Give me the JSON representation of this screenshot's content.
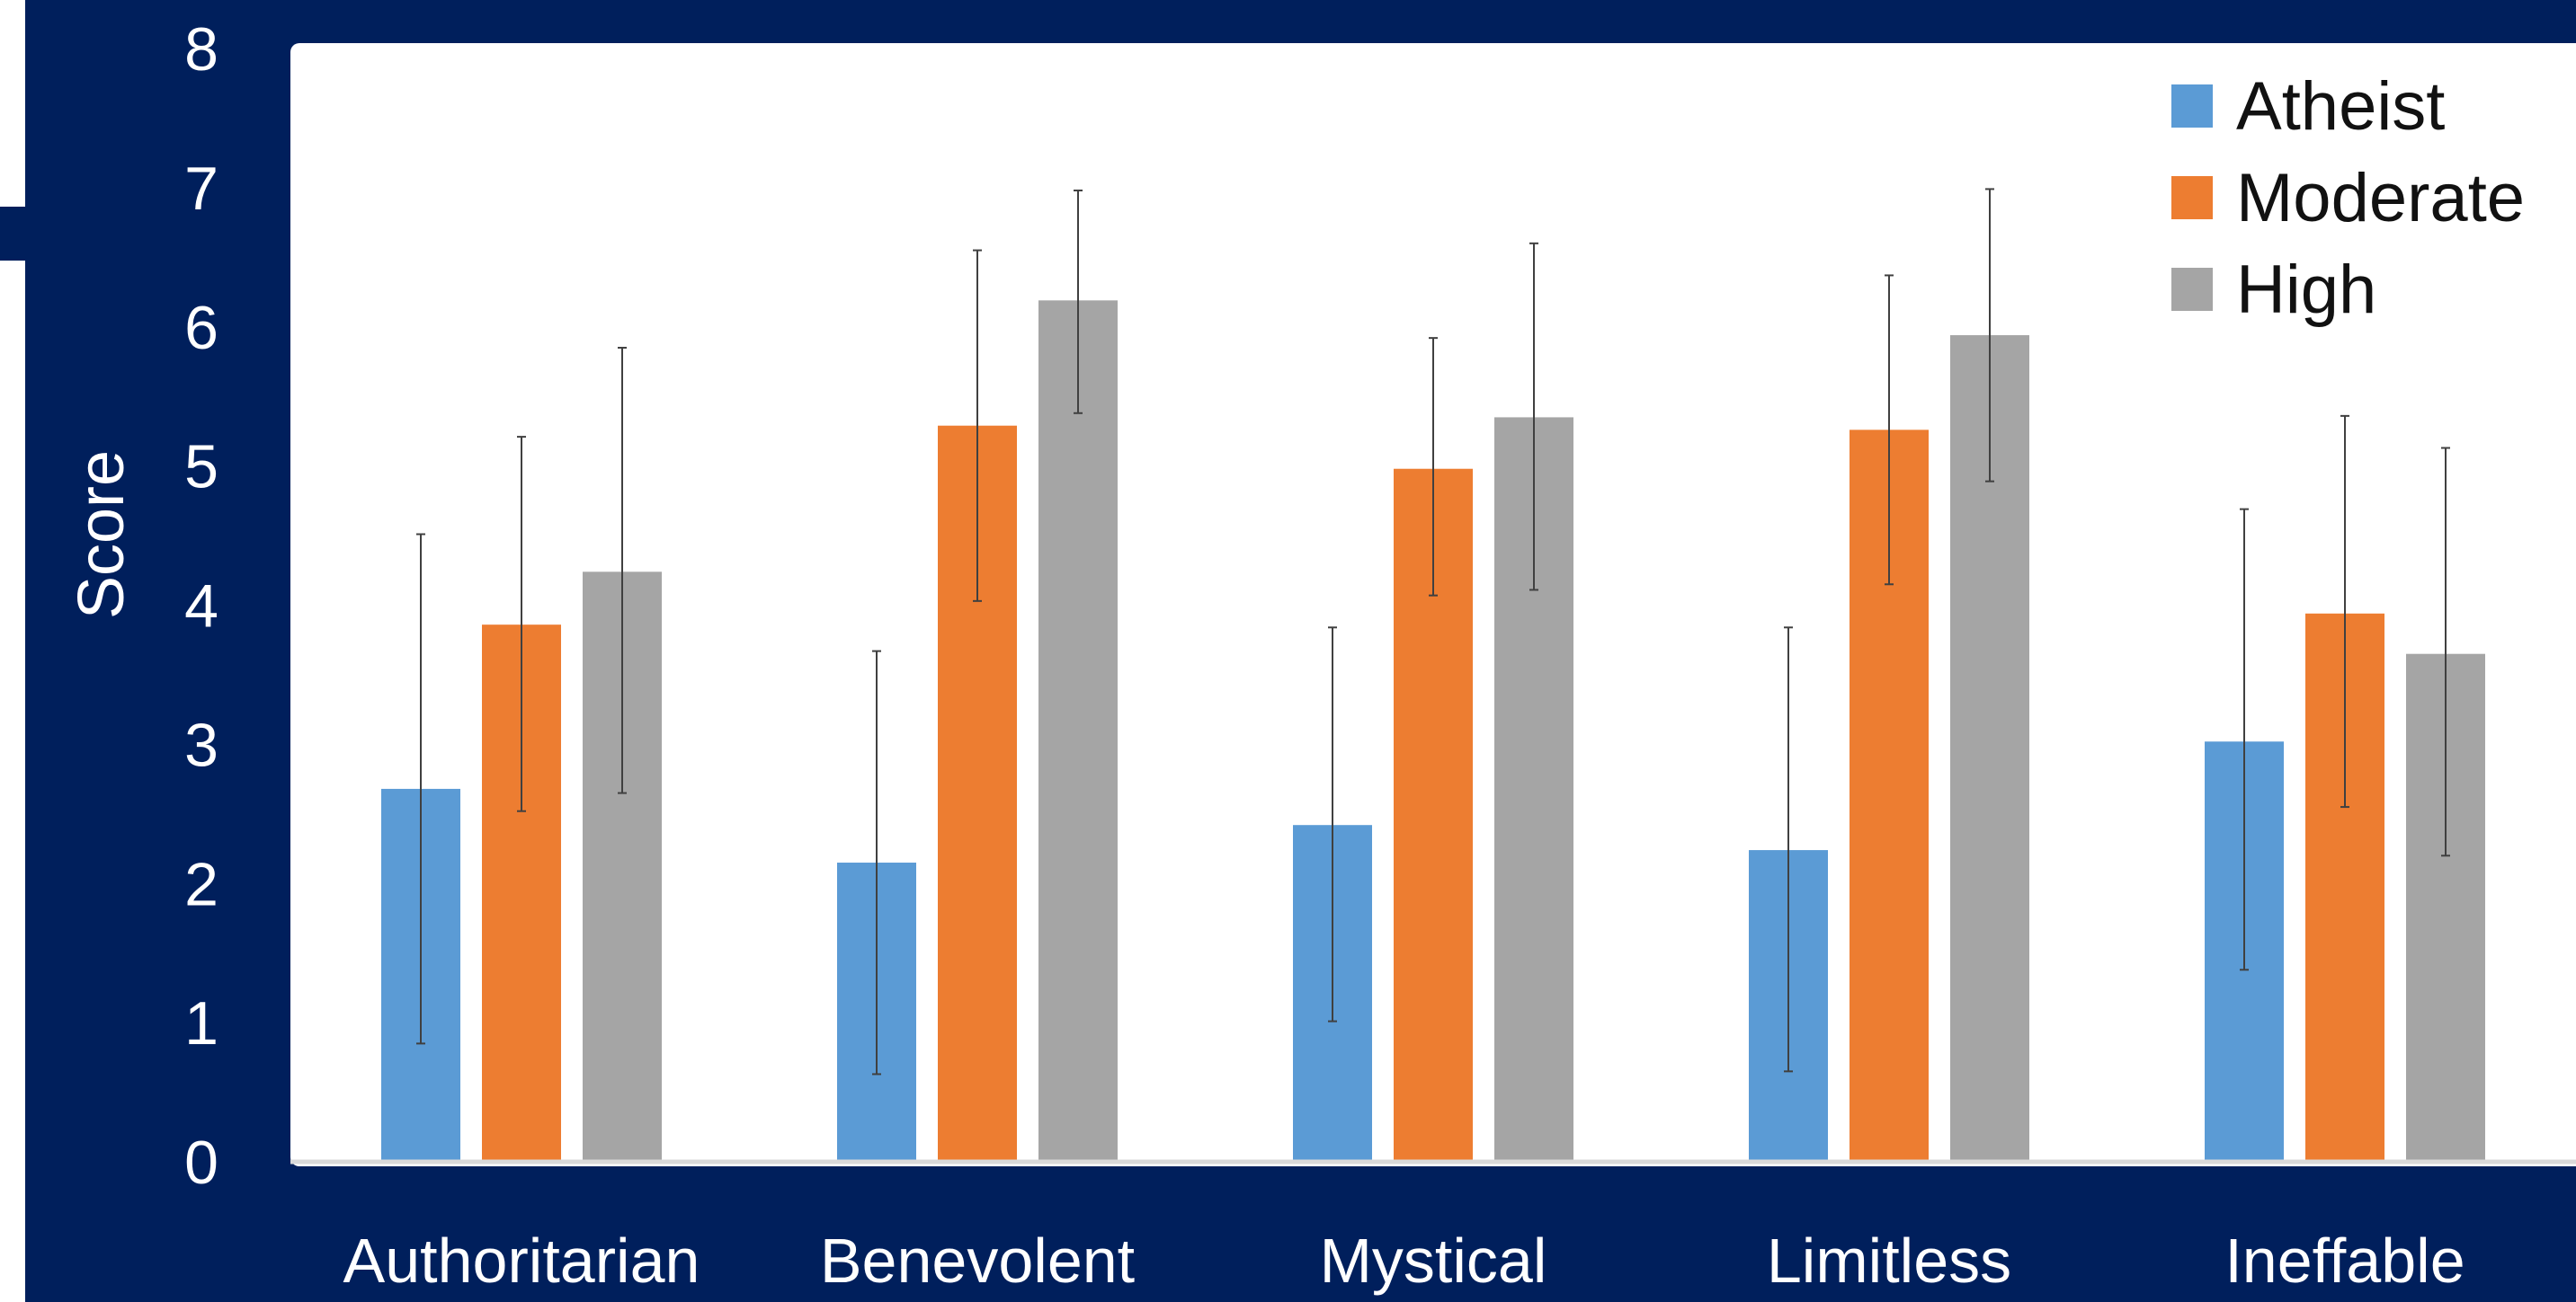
{
  "chart_data": {
    "type": "bar",
    "title": "",
    "xlabel": "",
    "ylabel": "Score",
    "ylim": [
      0,
      8
    ],
    "yticks": [
      0,
      1,
      2,
      3,
      4,
      5,
      6,
      7,
      8
    ],
    "grid": false,
    "legend_position": "top-right",
    "categories": [
      "Authoritarian",
      "Benevolent",
      "Mystical",
      "Limitless",
      "Ineffable"
    ],
    "series": [
      {
        "name": "Atheist",
        "color": "#5b9bd5",
        "values": [
          2.68,
          2.15,
          2.42,
          2.24,
          3.02
        ],
        "error_low": [
          0.85,
          0.63,
          1.01,
          0.65,
          1.38
        ],
        "error_high": [
          4.51,
          3.67,
          3.84,
          3.84,
          4.69
        ]
      },
      {
        "name": "Moderate",
        "color": "#ed7d31",
        "values": [
          3.86,
          5.29,
          4.98,
          5.26,
          3.94
        ],
        "error_low": [
          2.52,
          4.03,
          4.07,
          4.15,
          2.55
        ],
        "error_high": [
          5.21,
          6.55,
          5.92,
          6.37,
          5.36
        ]
      },
      {
        "name": "High",
        "color": "#a5a5a5",
        "values": [
          4.24,
          6.19,
          5.35,
          5.94,
          3.65
        ],
        "error_low": [
          2.65,
          5.38,
          4.11,
          4.89,
          2.2
        ],
        "error_high": [
          5.85,
          6.98,
          6.6,
          6.99,
          5.13
        ]
      }
    ]
  },
  "colors": {
    "background": "#001f5c",
    "plot_panel": "#ffffff",
    "axis_line": "#d9d9d9",
    "error_bar": "#404040"
  }
}
